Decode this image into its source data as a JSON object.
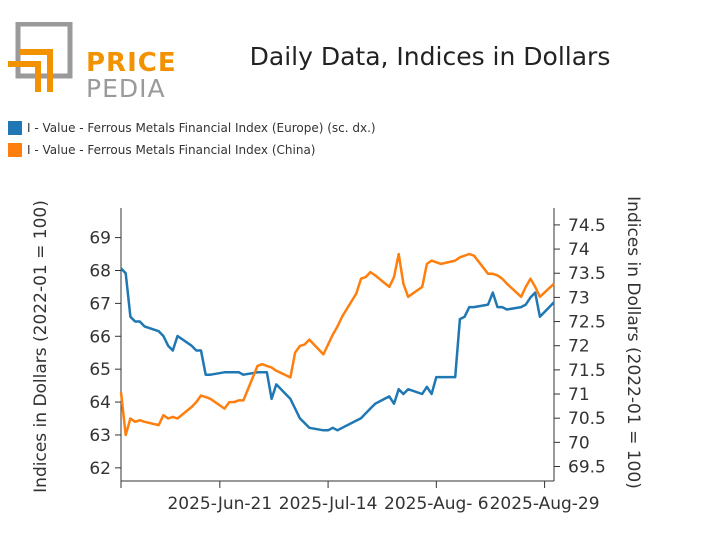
{
  "logo": {
    "price": "PRICE",
    "pedia": "PEDIA"
  },
  "colors": {
    "europe": "#1f77b4",
    "china": "#ff7f0e",
    "logo_orange": "#f39200",
    "logo_gray": "#9a9a9a"
  },
  "chart_data": {
    "type": "line",
    "title": "Daily Data, Indices in Dollars",
    "ylabel_left": "Indices in Dollars (2022-01 = 100)",
    "ylabel_right": "Indices in Dollars (2022-01 = 100)",
    "x_tick_labels": [
      "2025-Jun-21",
      "2025-Jul-14",
      "2025-Aug- 6",
      "2025-Aug-29"
    ],
    "x_tick_days": [
      21,
      44,
      67,
      90
    ],
    "x_start_label": "2025-Jun-1",
    "y_left_ticks": [
      "62",
      "63",
      "64",
      "65",
      "66",
      "67",
      "68",
      "69"
    ],
    "y_left_range": [
      61.6,
      69.9
    ],
    "y_right_ticks": [
      "69.5",
      "70",
      "70.5",
      "71",
      "71.5",
      "72",
      "72.5",
      "73",
      "73.5",
      "74",
      "74.5"
    ],
    "y_right_range": [
      69.2,
      74.85
    ],
    "series": [
      {
        "name": "I - Value - Ferrous Metals Financial Index (Europe) (sc. dx.)",
        "axis": "right",
        "color": "#1f77b4",
        "x": [
          0,
          1,
          2,
          3,
          4,
          5,
          8,
          9,
          10,
          11,
          12,
          15,
          16,
          17,
          18,
          19,
          22,
          23,
          24,
          25,
          26,
          29,
          30,
          31,
          32,
          33,
          36,
          37,
          38,
          39,
          40,
          43,
          44,
          45,
          46,
          47,
          50,
          51,
          52,
          53,
          54,
          57,
          58,
          59,
          60,
          61,
          64,
          65,
          66,
          67,
          68,
          71,
          72,
          73,
          74,
          75,
          78,
          79,
          80,
          81,
          82,
          85,
          86,
          87,
          88,
          89,
          92
        ],
        "y": [
          73.6,
          73.5,
          72.6,
          72.5,
          72.5,
          72.4,
          72.3,
          72.2,
          72.0,
          71.9,
          72.2,
          72.0,
          71.9,
          71.9,
          71.4,
          71.4,
          71.45,
          71.45,
          71.45,
          71.45,
          71.4,
          71.45,
          71.45,
          71.45,
          70.9,
          71.2,
          70.9,
          70.7,
          70.5,
          70.4,
          70.3,
          70.25,
          70.25,
          70.3,
          70.25,
          70.3,
          70.45,
          70.5,
          70.6,
          70.7,
          70.8,
          70.95,
          70.8,
          71.1,
          71.0,
          71.1,
          71.0,
          71.15,
          71.0,
          71.35,
          71.35,
          71.35,
          72.55,
          72.6,
          72.8,
          72.8,
          72.85,
          73.1,
          72.8,
          72.8,
          72.75,
          72.8,
          72.85,
          73.0,
          73.1,
          72.6,
          72.9
        ]
      },
      {
        "name": "I - Value - Ferrous Metals Financial Index (China)",
        "axis": "left",
        "color": "#ff7f0e",
        "x": [
          0,
          1,
          2,
          3,
          4,
          5,
          8,
          9,
          10,
          11,
          12,
          15,
          16,
          17,
          18,
          19,
          22,
          23,
          24,
          25,
          26,
          29,
          30,
          31,
          32,
          33,
          36,
          37,
          38,
          39,
          40,
          43,
          44,
          45,
          46,
          47,
          50,
          51,
          52,
          53,
          54,
          57,
          58,
          59,
          60,
          61,
          64,
          65,
          66,
          67,
          68,
          71,
          72,
          73,
          74,
          75,
          78,
          79,
          80,
          81,
          82,
          85,
          86,
          87,
          88,
          89,
          92
        ],
        "y": [
          64.3,
          63.0,
          63.5,
          63.4,
          63.45,
          63.4,
          63.3,
          63.6,
          63.5,
          63.55,
          63.5,
          63.85,
          64.0,
          64.2,
          64.15,
          64.1,
          63.8,
          64.0,
          64.0,
          64.05,
          64.05,
          65.1,
          65.15,
          65.1,
          65.05,
          64.95,
          64.75,
          65.5,
          65.7,
          65.75,
          65.9,
          65.45,
          65.75,
          66.05,
          66.3,
          66.6,
          67.3,
          67.75,
          67.8,
          67.95,
          67.85,
          67.5,
          67.8,
          68.5,
          67.6,
          67.2,
          67.5,
          68.2,
          68.3,
          68.25,
          68.2,
          68.3,
          68.4,
          68.45,
          68.5,
          68.45,
          67.9,
          67.9,
          67.85,
          67.75,
          67.6,
          67.2,
          67.5,
          67.75,
          67.5,
          67.2,
          67.6
        ]
      }
    ],
    "grid": false,
    "legend_position": "top-left"
  }
}
